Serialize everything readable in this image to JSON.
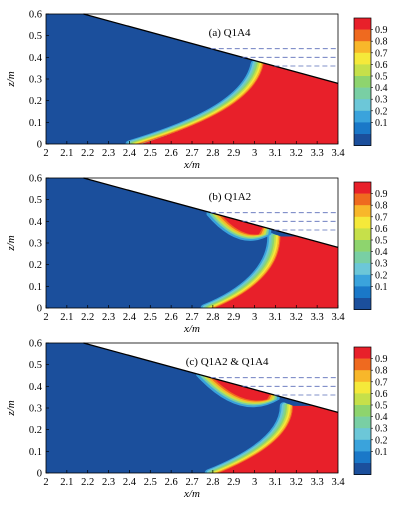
{
  "colormap": [
    "#1b4f9c",
    "#1a78c8",
    "#3aa3dc",
    "#6cc7d8",
    "#79cfa4",
    "#8ed46e",
    "#c6e04a",
    "#f5e93a",
    "#f8b72a",
    "#ef6a1f",
    "#e8202a"
  ],
  "chart_data": [
    {
      "type": "heatmap",
      "label": "(a) Q1A4",
      "xlabel": "x/m",
      "ylabel": "z/m",
      "xlim": [
        2,
        3.4
      ],
      "ylim": [
        0,
        0.6
      ],
      "xticks": [
        "2",
        "2.1",
        "2.2",
        "2.3",
        "2.4",
        "2.5",
        "2.6",
        "2.7",
        "2.8",
        "2.9",
        "3",
        "3.1",
        "3.2",
        "3.3",
        "3.4"
      ],
      "yticks": [
        "0",
        "0.1",
        "0.2",
        "0.3",
        "0.4",
        "0.5",
        "0.6"
      ],
      "colorbar": [
        "0.9",
        "0.8",
        "0.7",
        "0.6",
        "0.5",
        "0.4",
        "0.3",
        "0.2",
        "0.1"
      ],
      "bed_line": [
        [
          2.18,
          0.6
        ],
        [
          3.4,
          0.28
        ]
      ],
      "dashed_levels": [
        0.44,
        0.4,
        0.36
      ],
      "interfaces": [
        {
          "type": "main",
          "bottom": [
            2.42,
            0.0
          ],
          "top": [
            3.02,
            0.37
          ],
          "ctrl": [
            2.66,
            0.07,
            2.98,
            0.18
          ]
        }
      ]
    },
    {
      "type": "heatmap",
      "label": "(b) Q1A2",
      "xlabel": "x/m",
      "ylabel": "z/m",
      "xlim": [
        2,
        3.4
      ],
      "ylim": [
        0,
        0.6
      ],
      "xticks": [
        "2",
        "2.1",
        "2.2",
        "2.3",
        "2.4",
        "2.5",
        "2.6",
        "2.7",
        "2.8",
        "2.9",
        "3",
        "3.1",
        "3.2",
        "3.3",
        "3.4"
      ],
      "yticks": [
        "0",
        "0.1",
        "0.2",
        "0.3",
        "0.4",
        "0.5",
        "0.6"
      ],
      "colorbar": [
        "0.9",
        "0.8",
        "0.7",
        "0.6",
        "0.5",
        "0.4",
        "0.3",
        "0.2",
        "0.1"
      ],
      "bed_line": [
        [
          2.18,
          0.6
        ],
        [
          3.4,
          0.28
        ]
      ],
      "dashed_levels": [
        0.44,
        0.4,
        0.36
      ],
      "interfaces": [
        {
          "type": "main",
          "bottom": [
            2.78,
            0.0
          ],
          "top": [
            3.1,
            0.33
          ],
          "ctrl": [
            2.96,
            0.07,
            3.1,
            0.18
          ]
        },
        {
          "type": "plume",
          "left": [
            2.77,
            0.43
          ],
          "right": [
            3.08,
            0.34
          ],
          "depth": [
            2.93,
            0.29
          ]
        }
      ]
    },
    {
      "type": "heatmap",
      "label": "(c) Q1A2 & Q1A4",
      "xlabel": "x/m",
      "ylabel": "z/m",
      "xlim": [
        2,
        3.4
      ],
      "ylim": [
        0,
        0.6
      ],
      "xticks": [
        "2",
        "2.1",
        "2.2",
        "2.3",
        "2.4",
        "2.5",
        "2.6",
        "2.7",
        "2.8",
        "2.9",
        "3",
        "3.1",
        "3.2",
        "3.3",
        "3.4"
      ],
      "yticks": [
        "0",
        "0.1",
        "0.2",
        "0.3",
        "0.4",
        "0.5",
        "0.6"
      ],
      "colorbar": [
        "0.9",
        "0.8",
        "0.7",
        "0.6",
        "0.5",
        "0.4",
        "0.3",
        "0.2",
        "0.1"
      ],
      "bed_line": [
        [
          2.18,
          0.6
        ],
        [
          3.4,
          0.28
        ]
      ],
      "dashed_levels": [
        0.44,
        0.4,
        0.36
      ],
      "interfaces": [
        {
          "type": "main",
          "bottom": [
            2.8,
            0.0
          ],
          "top": [
            3.16,
            0.31
          ],
          "ctrl": [
            2.98,
            0.07,
            3.16,
            0.17
          ]
        },
        {
          "type": "plume",
          "left": [
            2.72,
            0.45
          ],
          "right": [
            3.12,
            0.34
          ],
          "depth": [
            2.93,
            0.27
          ]
        }
      ]
    }
  ]
}
